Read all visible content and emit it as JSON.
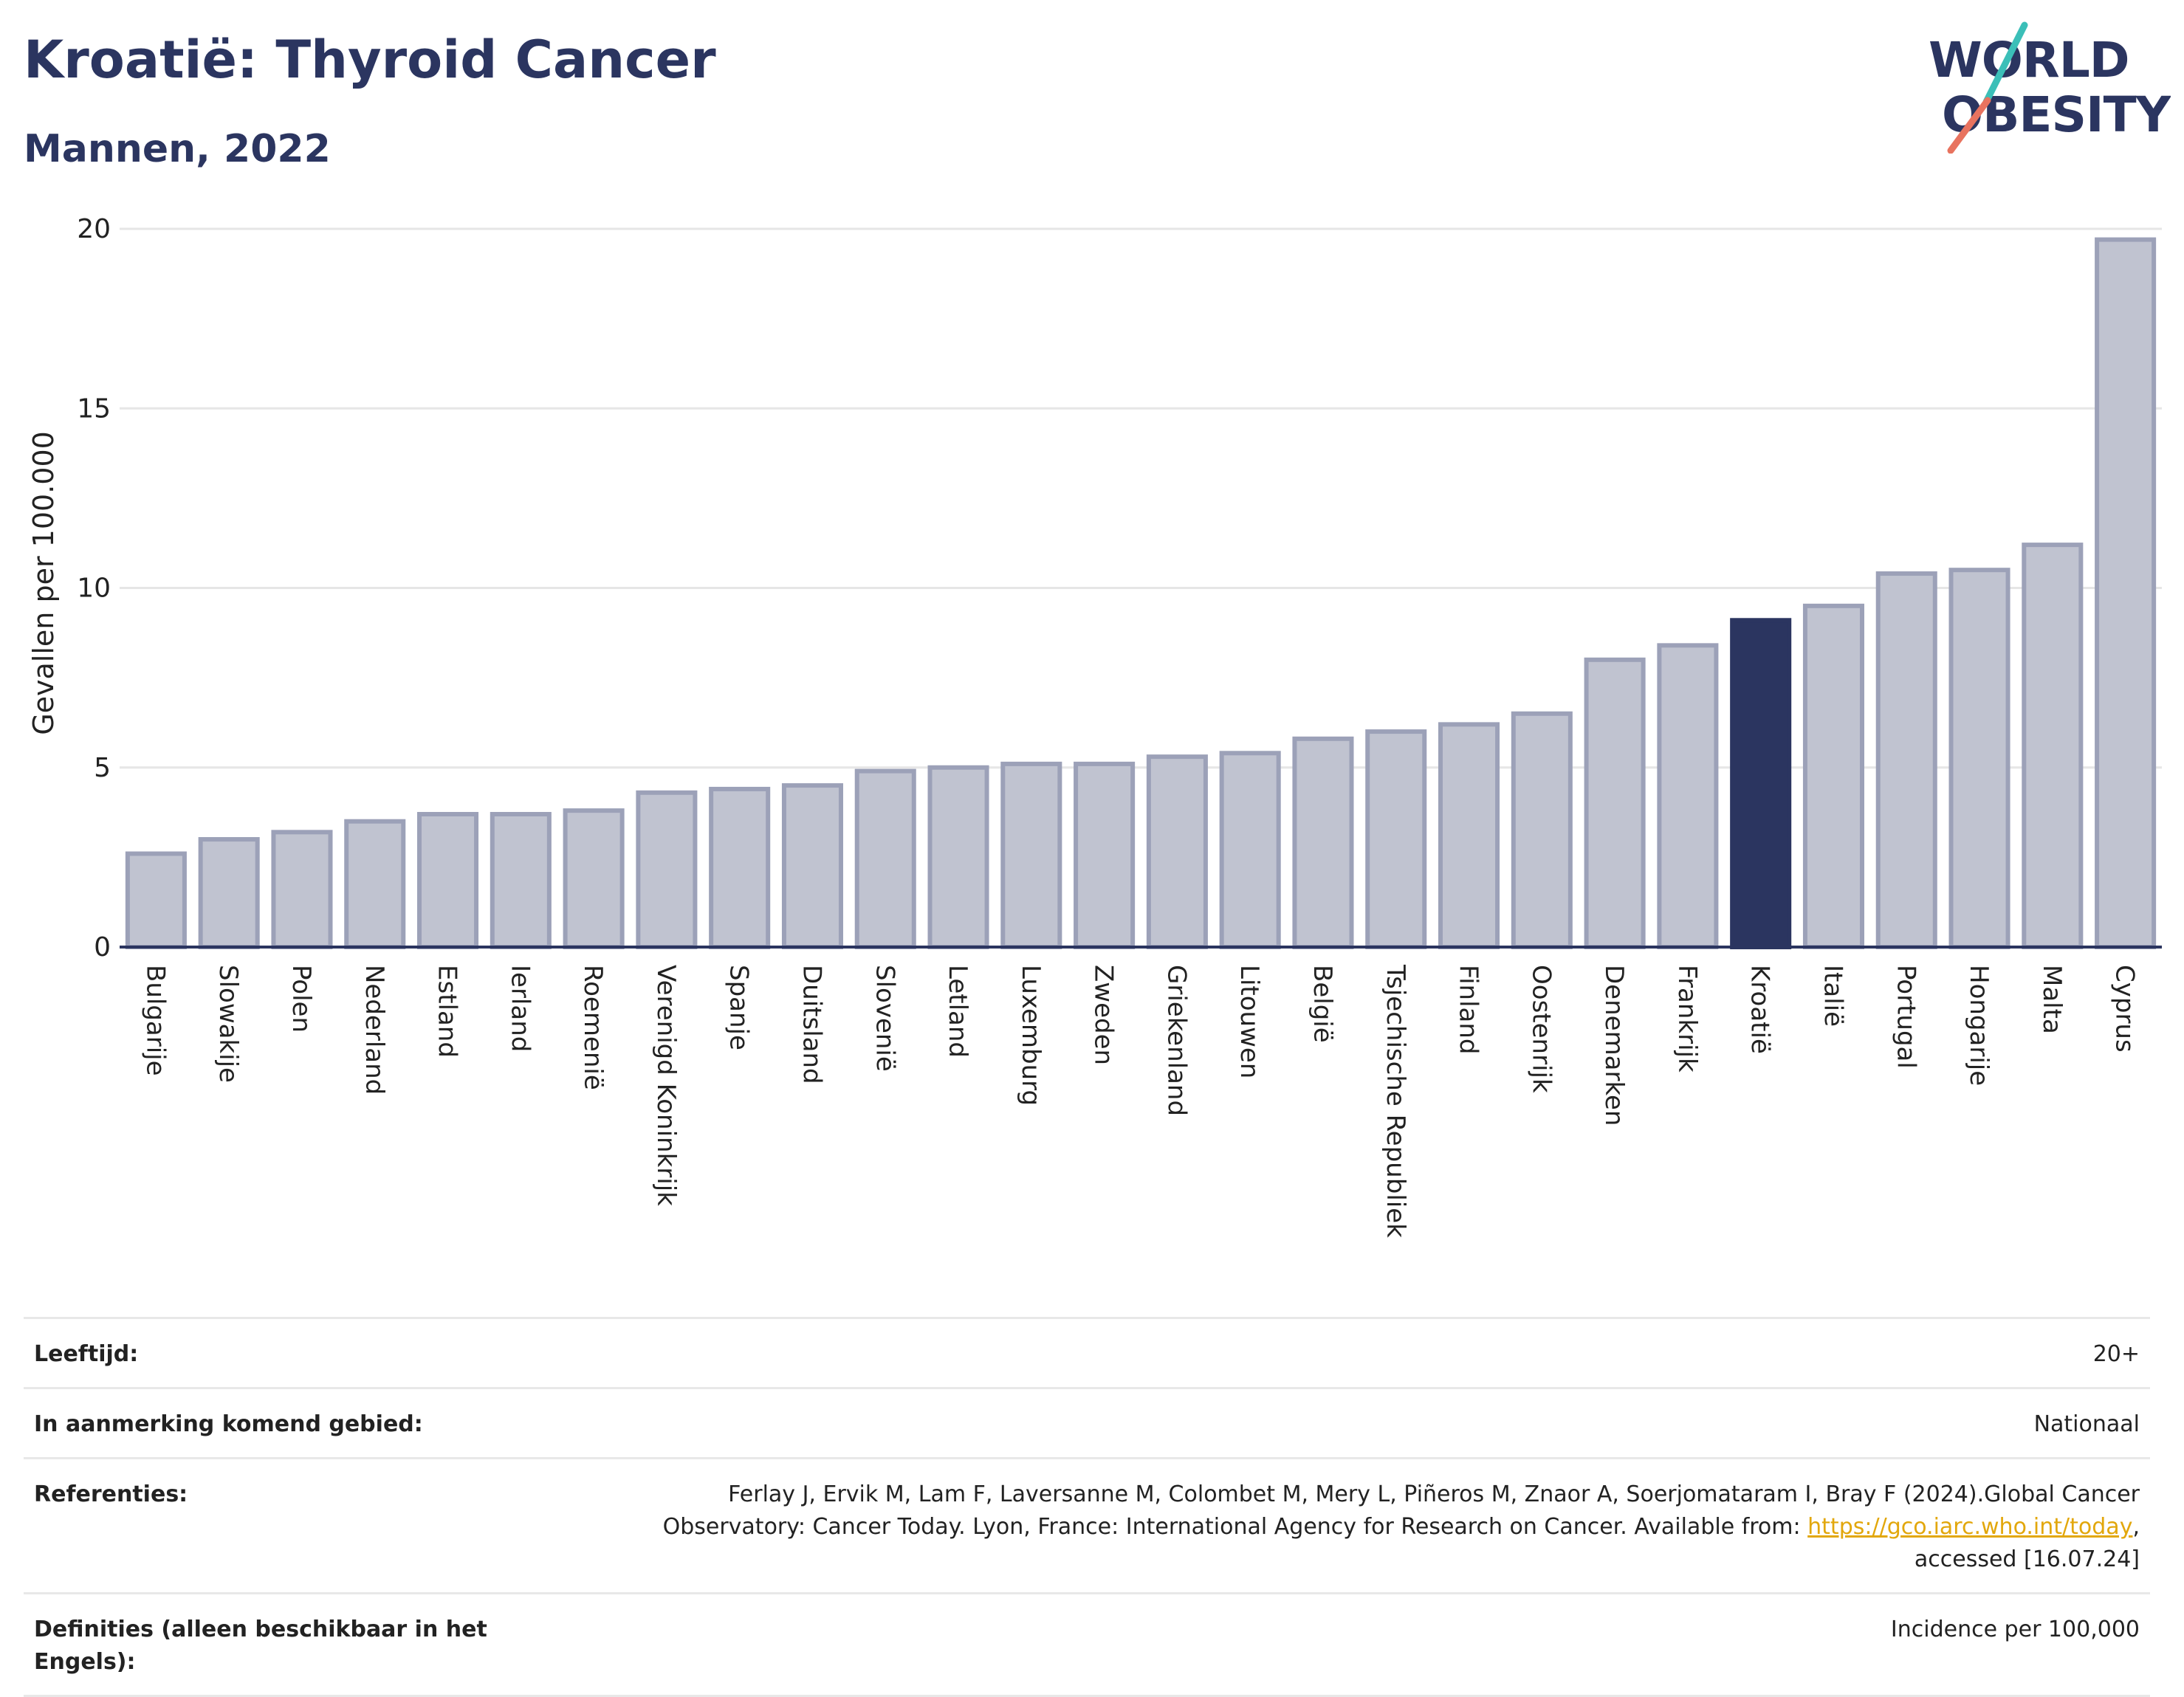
{
  "header": {
    "title": "Kroatië: Thyroid Cancer",
    "subtitle": "Mannen, 2022"
  },
  "logo": {
    "line1": "WORLD",
    "line2": "OBESITY",
    "colors": {
      "text": "#2b3560",
      "slash_top": "#3bbfb8",
      "slash_bottom": "#e8735f"
    }
  },
  "chart_data": {
    "type": "bar",
    "ylabel": "Gevallen per 100.000",
    "ylim": [
      0,
      20
    ],
    "yticks": [
      0,
      5,
      10,
      15,
      20
    ],
    "grid": true,
    "highlight": "Kroatië",
    "colors": {
      "bar": "#c0c3d0",
      "bar_border": "#9ca1b8",
      "highlight": "#2b3560",
      "grid": "#e6e6e6",
      "axis": "#2b3560"
    },
    "categories": [
      "Bulgarije",
      "Slowakije",
      "Polen",
      "Nederland",
      "Estland",
      "Ierland",
      "Roemenië",
      "Verenigd Koninkrijk",
      "Spanje",
      "Duitsland",
      "Slovenië",
      "Letland",
      "Luxemburg",
      "Zweden",
      "Griekenland",
      "Litouwen",
      "België",
      "Tsjechische Republiek",
      "Finland",
      "Oostenrijk",
      "Denemarken",
      "Frankrijk",
      "Kroatië",
      "Italië",
      "Portugal",
      "Hongarije",
      "Malta",
      "Cyprus"
    ],
    "values": [
      2.6,
      3.0,
      3.2,
      3.5,
      3.7,
      3.7,
      3.8,
      4.3,
      4.4,
      4.5,
      4.9,
      5.0,
      5.1,
      5.1,
      5.3,
      5.4,
      5.8,
      6.0,
      6.2,
      6.5,
      8.0,
      8.4,
      9.1,
      9.5,
      10.4,
      10.5,
      11.2,
      19.7
    ]
  },
  "meta": {
    "age_label": "Leeftijd:",
    "age_value": "20+",
    "area_label": "In aanmerking komend gebied:",
    "area_value": "Nationaal",
    "ref_label": "Referenties:",
    "ref_line1": "Ferlay J, Ervik M, Lam F, Laversanne M, Colombet M, Mery L, Piñeros M, Znaor A, Soerjomataram I, Bray F (2024).Global Cancer",
    "ref_line2": "Observatory: Cancer Today. Lyon, France: International Agency for Research on Cancer. Available from: ",
    "ref_link": "https://gco.iarc.who.int/today",
    "ref_line3": "accessed [16.07.24]",
    "def_label": "Definities (alleen beschikbaar in het Engels):",
    "def_value": "Incidence per 100,000"
  }
}
